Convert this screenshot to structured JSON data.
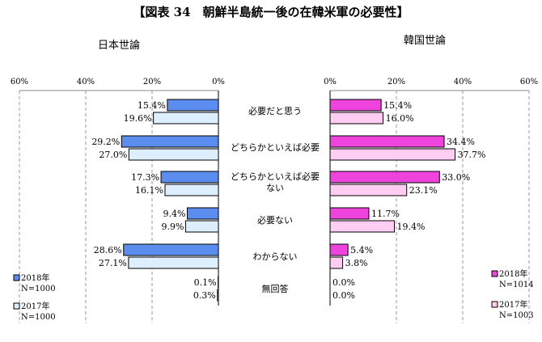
{
  "chart_data": {
    "type": "bar",
    "title": "【図表 34　朝鮮半島統一後の在韓米軍の必要性】",
    "categories": [
      "必要だと思う",
      "どちらかといえば必要",
      "どちらかといえば必要ない",
      "必要ない",
      "わからない",
      "無回答"
    ],
    "xlim": [
      0,
      60
    ],
    "ticks": [
      "0%",
      "20%",
      "40%",
      "60%"
    ],
    "panels": [
      {
        "title": "日本世論",
        "series": [
          {
            "name": "2018年",
            "sample": "N=1000",
            "values": [
              15.4,
              29.2,
              17.3,
              9.4,
              28.6,
              0.1
            ],
            "labels": [
              "15.4%",
              "29.2%",
              "17.3%",
              "9.4%",
              "28.6%",
              "0.1%"
            ],
            "color": "#5B8DEF"
          },
          {
            "name": "2017年",
            "sample": "N=1000",
            "values": [
              19.6,
              27.0,
              16.1,
              9.9,
              27.1,
              0.3
            ],
            "labels": [
              "19.6%",
              "27.0%",
              "16.1%",
              "9.9%",
              "27.1%",
              "0.3%"
            ],
            "color": "#DDEEFF"
          }
        ]
      },
      {
        "title": "韓国世論",
        "series": [
          {
            "name": "2018年",
            "sample": "N=1014",
            "values": [
              15.4,
              34.4,
              33.0,
              11.7,
              5.4,
              0.0
            ],
            "labels": [
              "15.4%",
              "34.4%",
              "33.0%",
              "11.7%",
              "5.4%",
              "0.0%"
            ],
            "color": "#EE44DD"
          },
          {
            "name": "2017年",
            "sample": "N=1003",
            "values": [
              16.0,
              37.7,
              23.1,
              19.4,
              3.8,
              0.0
            ],
            "labels": [
              "16.0%",
              "37.7%",
              "23.1%",
              "19.4%",
              "3.8%",
              "0.0%"
            ],
            "color": "#FFCCF2"
          }
        ]
      }
    ]
  }
}
